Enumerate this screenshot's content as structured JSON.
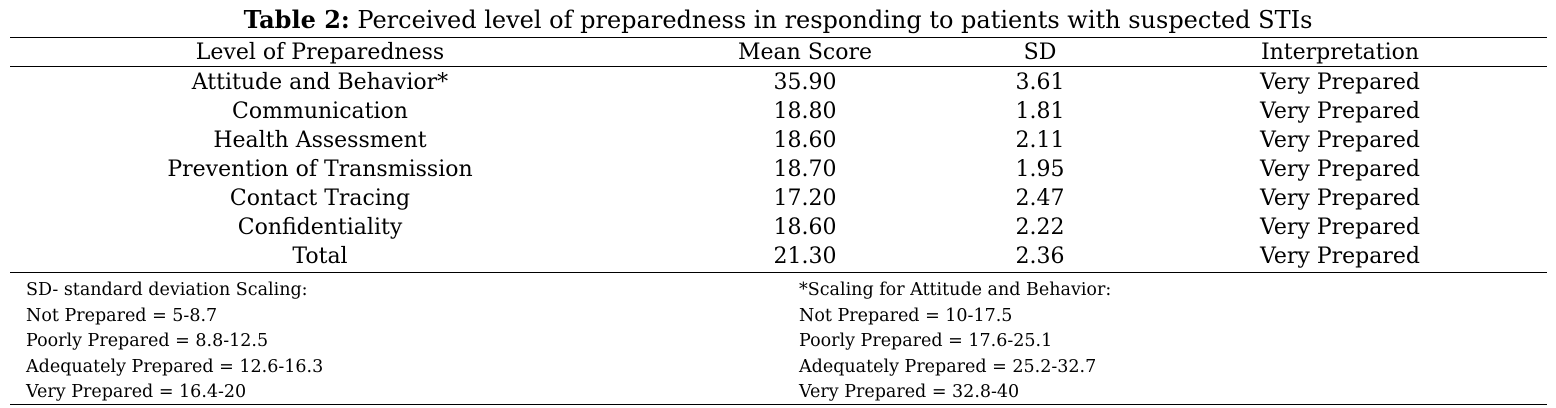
{
  "caption": {
    "label": "Table 2:",
    "text": "Perceived level of preparedness in responding to patients with suspected STIs"
  },
  "table": {
    "headers": [
      "Level of Preparedness",
      "Mean Score",
      "SD",
      "Interpretation"
    ],
    "rows": [
      [
        "Attitude and Behavior*",
        "35.90",
        "3.61",
        "Very Prepared"
      ],
      [
        "Communication",
        "18.80",
        "1.81",
        "Very Prepared"
      ],
      [
        "Health Assessment",
        "18.60",
        "2.11",
        "Very Prepared"
      ],
      [
        "Prevention of Transmission",
        "18.70",
        "1.95",
        "Very Prepared"
      ],
      [
        "Contact Tracing",
        "17.20",
        "2.47",
        "Very Prepared"
      ],
      [
        "Confidentiality",
        "18.60",
        "2.22",
        "Very Prepared"
      ],
      [
        "Total",
        "21.30",
        "2.36",
        "Very Prepared"
      ]
    ]
  },
  "notes": {
    "left": [
      "SD- standard deviation Scaling:",
      "Not Prepared = 5-8.7",
      "Poorly Prepared = 8.8-12.5",
      "Adequately Prepared = 12.6-16.3",
      "Very Prepared = 16.4-20"
    ],
    "right": [
      "*Scaling for Attitude and Behavior:",
      "Not Prepared = 10-17.5",
      "Poorly Prepared = 17.6-25.1",
      "Adequately Prepared = 25.2-32.7",
      "Very Prepared = 32.8-40"
    ]
  }
}
